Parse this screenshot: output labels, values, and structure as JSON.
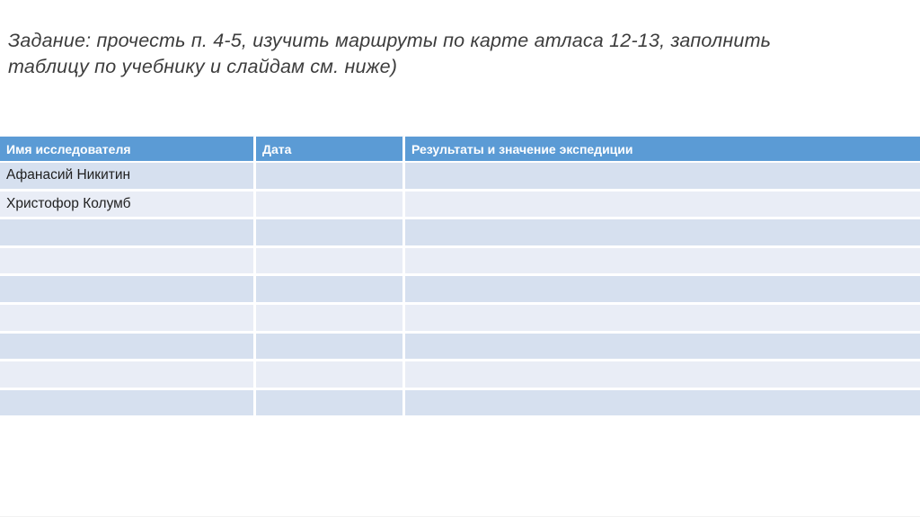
{
  "slide": {
    "title": "Задание: прочесть п. 4-5, изучить маршруты по карте атласа 12-13, заполнить таблицу по учебнику и слайдам см. ниже)"
  },
  "table": {
    "columns": [
      "Имя исследователя",
      "Дата",
      "Результаты и значение экспедиции"
    ],
    "rows": [
      [
        "Афанасий Никитин",
        "",
        ""
      ],
      [
        "Христофор Колумб",
        "",
        ""
      ],
      [
        "",
        "",
        ""
      ],
      [
        "",
        "",
        ""
      ],
      [
        "",
        "",
        ""
      ],
      [
        "",
        "",
        ""
      ],
      [
        "",
        "",
        ""
      ],
      [
        "",
        "",
        ""
      ],
      [
        "",
        "",
        ""
      ]
    ]
  },
  "colors": {
    "header_bg": "#5B9BD5",
    "header_text": "#FFFFFF",
    "row_odd_bg": "#D6E0EF",
    "row_even_bg": "#E9EDF6",
    "title_text": "#3C3C3C",
    "cell_text": "#1F1F1F",
    "page_bg": "#FFFFFF"
  }
}
